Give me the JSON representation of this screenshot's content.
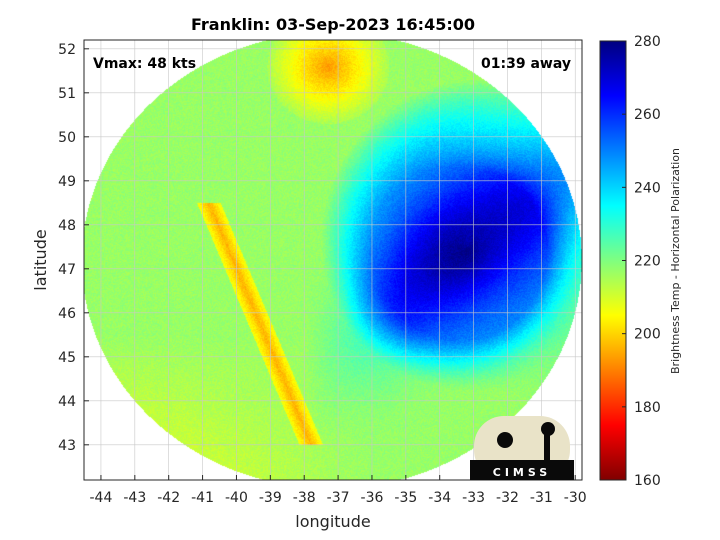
{
  "chart_data": {
    "type": "heatmap",
    "title": "Franklin: 03-Sep-2023 16:45:00",
    "xlabel": "longitude",
    "ylabel": "latitude",
    "xlim": [
      -44.5,
      -29.8
    ],
    "ylim": [
      42.2,
      52.2
    ],
    "xticks": [
      -44,
      -43,
      -42,
      -41,
      -40,
      -39,
      -38,
      -37,
      -36,
      -35,
      -34,
      -33,
      -32,
      -31,
      -30
    ],
    "yticks": [
      43,
      44,
      45,
      46,
      47,
      48,
      49,
      50,
      51,
      52
    ],
    "grid": true,
    "annotations": {
      "vmax": "Vmax: 48 kts",
      "time_away": "01:39 away"
    },
    "colorbar": {
      "label": "Brightness Temp - Horizontal Polarization",
      "min": 160,
      "max": 280,
      "ticks": [
        160,
        180,
        200,
        220,
        240,
        260,
        280
      ],
      "colormap": "jet"
    },
    "storm_center": {
      "lon": -33.2,
      "lat": 47.5
    },
    "swath_center": {
      "lon": -37.2,
      "lat": 47.2
    },
    "fields": {
      "background_tb": 217,
      "storm_core_tb": 262,
      "storm_radius_deg": 4.3,
      "cold_band_tb": 196,
      "northwest_warm_tb": 193
    }
  },
  "logo": {
    "text": "CIMSS",
    "colors": {
      "background": "#e9e3c8",
      "ink": "#0a0a0a"
    }
  }
}
